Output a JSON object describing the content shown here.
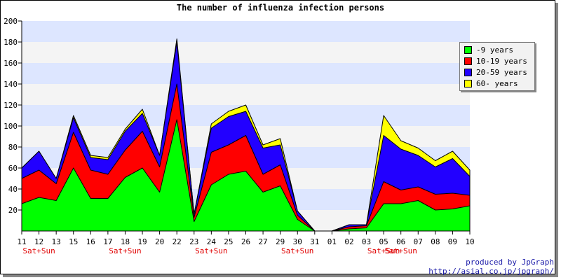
{
  "chart_data": {
    "type": "area",
    "stacked": true,
    "title": "The number of influenza infection persons",
    "xlabel": "",
    "ylabel": "",
    "ylim": [
      0,
      200
    ],
    "yticks": [
      20,
      40,
      60,
      80,
      100,
      120,
      140,
      160,
      180,
      200
    ],
    "grid": true,
    "legend_position": "top-right",
    "categories": [
      "11",
      "12",
      "13",
      "15",
      "16",
      "17",
      "18",
      "19",
      "20",
      "22",
      "23",
      "24",
      "25",
      "26",
      "27",
      "29",
      "30",
      "31",
      "01",
      "02",
      "03",
      "05",
      "06",
      "07",
      "08",
      "09",
      "10"
    ],
    "weekend_labels": [
      {
        "category": "12",
        "text": "Sat+Sun"
      },
      {
        "category": "18",
        "text": "Sat+Sun"
      },
      {
        "category": "24",
        "text": "Sat+Sun"
      },
      {
        "category": "30",
        "text": "Sat+Sun"
      },
      {
        "category": "05",
        "text": "Sat+Sun"
      },
      {
        "category": "06",
        "text": "Sat+Sun"
      }
    ],
    "series": [
      {
        "name": "-9 years",
        "color": "#00ff00",
        "values": [
          26,
          32,
          29,
          60,
          31,
          31,
          51,
          60,
          37,
          106,
          9,
          44,
          54,
          57,
          37,
          43,
          11,
          0,
          0,
          2,
          3,
          26,
          26,
          29,
          20,
          21,
          24
        ]
      },
      {
        "name": "10-19 years",
        "color": "#ff0000",
        "values": [
          24,
          26,
          16,
          34,
          27,
          23,
          26,
          35,
          24,
          34,
          4,
          31,
          28,
          34,
          17,
          20,
          4,
          0,
          0,
          2,
          2,
          21,
          13,
          13,
          15,
          15,
          10
        ]
      },
      {
        "name": "20-59 years",
        "color": "#2200ff",
        "values": [
          10,
          18,
          5,
          14,
          12,
          14,
          18,
          17,
          11,
          40,
          3,
          23,
          27,
          23,
          25,
          19,
          4,
          0,
          0,
          2,
          1,
          44,
          39,
          30,
          26,
          33,
          18
        ]
      },
      {
        "name": "60- years",
        "color": "#ffff00",
        "values": [
          0,
          0,
          0,
          2,
          2,
          2,
          2,
          4,
          0,
          3,
          0,
          4,
          5,
          6,
          3,
          6,
          0,
          0,
          0,
          0,
          0,
          19,
          8,
          7,
          6,
          7,
          6
        ]
      }
    ]
  },
  "credits": {
    "line1": "produced by JpGraph",
    "line2": "http://asial.co.jp/jpgraph/"
  }
}
